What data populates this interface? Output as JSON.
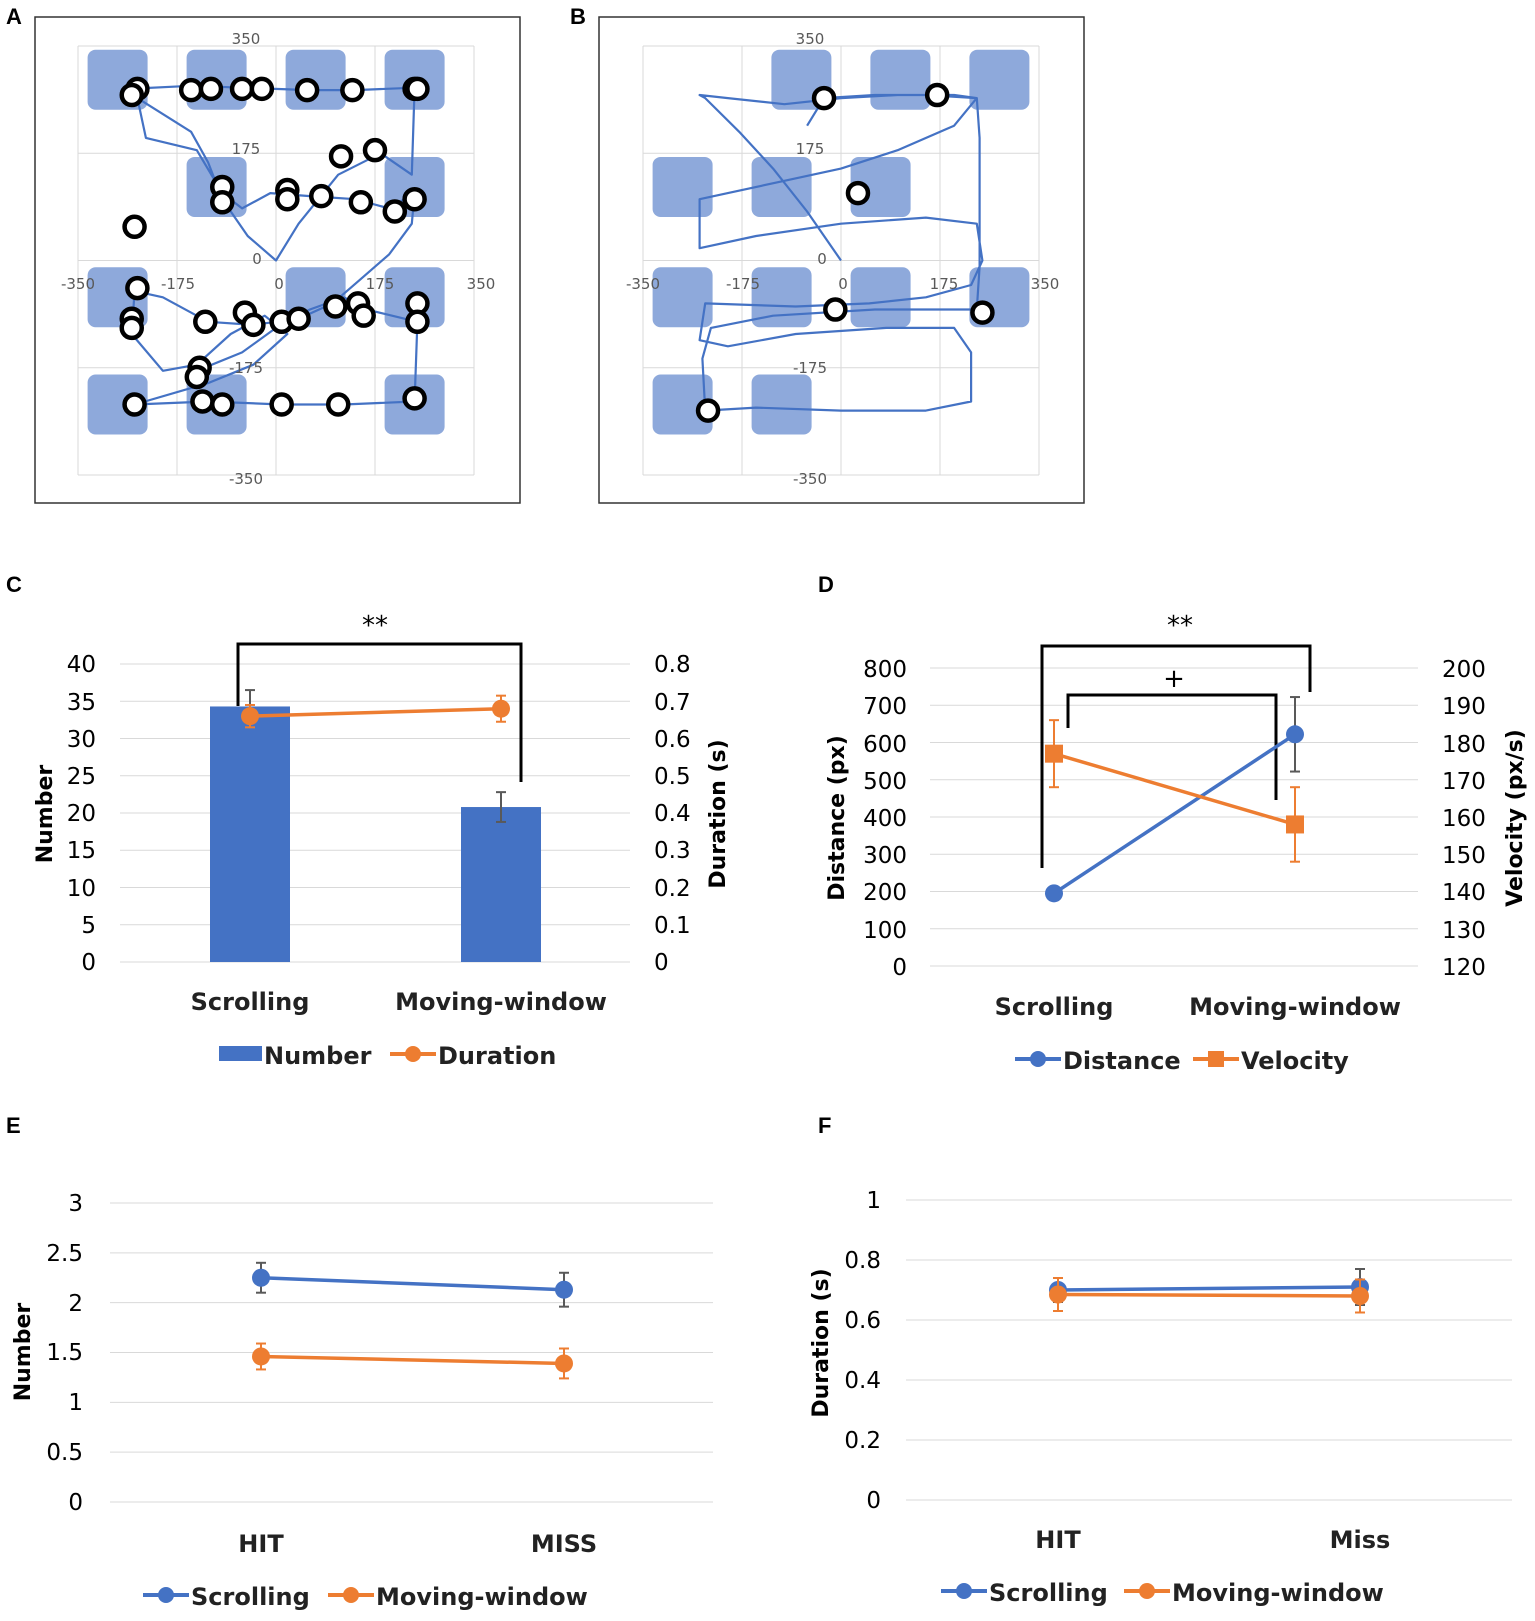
{
  "colors": {
    "blue": "#4472C4",
    "orange": "#ED7D31",
    "target": "#8EA9DB",
    "track": "#4472C4",
    "grid": "#D9D9D9",
    "errbar": "#595959"
  },
  "panels": {
    "A": {
      "label": "A"
    },
    "B": {
      "label": "B"
    },
    "C": {
      "label": "C"
    },
    "D": {
      "label": "D"
    },
    "E": {
      "label": "E"
    },
    "F": {
      "label": "F"
    }
  },
  "chart_data": [
    {
      "id": "A",
      "type": "scatter",
      "title": "",
      "x_ticks": [
        "-350",
        "-175",
        "0",
        "175",
        "350"
      ],
      "y_ticks": [
        "350",
        "175",
        "0",
        "-175",
        "-350"
      ],
      "xlim": [
        -350,
        350
      ],
      "ylim": [
        -350,
        350
      ],
      "targets": [
        [
          -280,
          295
        ],
        [
          -105,
          295
        ],
        [
          70,
          295
        ],
        [
          245,
          295
        ],
        [
          -105,
          120
        ],
        [
          245,
          120
        ],
        [
          -280,
          -60
        ],
        [
          70,
          -60
        ],
        [
          245,
          -60
        ],
        [
          -280,
          -235
        ],
        [
          -105,
          -235
        ],
        [
          245,
          -235
        ]
      ],
      "fixations": [
        [
          -245,
          280
        ],
        [
          -255,
          270
        ],
        [
          -150,
          278
        ],
        [
          -115,
          280
        ],
        [
          -60,
          280
        ],
        [
          -25,
          280
        ],
        [
          55,
          278
        ],
        [
          135,
          278
        ],
        [
          245,
          280
        ],
        [
          250,
          280
        ],
        [
          115,
          170
        ],
        [
          175,
          180
        ],
        [
          -95,
          120
        ],
        [
          -95,
          95
        ],
        [
          20,
          115
        ],
        [
          20,
          100
        ],
        [
          80,
          105
        ],
        [
          150,
          95
        ],
        [
          210,
          80
        ],
        [
          245,
          100
        ],
        [
          -250,
          55
        ],
        [
          -245,
          -45
        ],
        [
          -255,
          -95
        ],
        [
          -255,
          -110
        ],
        [
          -125,
          -100
        ],
        [
          -55,
          -85
        ],
        [
          -40,
          -105
        ],
        [
          10,
          -100
        ],
        [
          40,
          -95
        ],
        [
          105,
          -75
        ],
        [
          145,
          -70
        ],
        [
          155,
          -90
        ],
        [
          250,
          -70
        ],
        [
          250,
          -100
        ],
        [
          -135,
          -175
        ],
        [
          -140,
          -190
        ],
        [
          -250,
          -235
        ],
        [
          -130,
          -230
        ],
        [
          -95,
          -235
        ],
        [
          10,
          -235
        ],
        [
          110,
          -235
        ],
        [
          245,
          -225
        ]
      ],
      "path": [
        [
          -260,
          280
        ],
        [
          -150,
          285
        ],
        [
          -60,
          282
        ],
        [
          60,
          278
        ],
        [
          140,
          278
        ],
        [
          245,
          282
        ],
        [
          240,
          140
        ],
        [
          185,
          175
        ],
        [
          110,
          140
        ],
        [
          40,
          60
        ],
        [
          0,
          0
        ],
        [
          -50,
          40
        ],
        [
          -95,
          100
        ],
        [
          -120,
          160
        ],
        [
          -150,
          210
        ],
        [
          -245,
          265
        ],
        [
          -230,
          200
        ],
        [
          -140,
          180
        ],
        [
          -95,
          110
        ],
        [
          -60,
          85
        ],
        [
          -10,
          110
        ],
        [
          60,
          105
        ],
        [
          140,
          100
        ],
        [
          200,
          85
        ],
        [
          245,
          110
        ],
        [
          240,
          60
        ],
        [
          200,
          10
        ],
        [
          150,
          -30
        ],
        [
          100,
          -70
        ],
        [
          40,
          -95
        ],
        [
          -40,
          -105
        ],
        [
          -120,
          -100
        ],
        [
          -200,
          -60
        ],
        [
          -250,
          -50
        ],
        [
          -255,
          -120
        ],
        [
          -200,
          -180
        ],
        [
          -140,
          -170
        ],
        [
          -80,
          -120
        ],
        [
          -20,
          -90
        ],
        [
          20,
          -120
        ],
        [
          -40,
          -170
        ],
        [
          -120,
          -200
        ],
        [
          -250,
          -235
        ],
        [
          -120,
          -230
        ],
        [
          10,
          -235
        ],
        [
          120,
          -235
        ],
        [
          245,
          -230
        ],
        [
          250,
          -100
        ],
        [
          160,
          -80
        ],
        [
          120,
          -60
        ],
        [
          60,
          -80
        ],
        [
          0,
          -110
        ],
        [
          -60,
          -150
        ],
        [
          -140,
          -180
        ]
      ]
    },
    {
      "id": "B",
      "type": "scatter",
      "title": "",
      "x_ticks": [
        "-350",
        "-175",
        "0",
        "175",
        "350"
      ],
      "y_ticks": [
        "350",
        "175",
        "0",
        "-175",
        "-350"
      ],
      "xlim": [
        -350,
        350
      ],
      "ylim": [
        -350,
        350
      ],
      "targets": [
        [
          -70,
          295
        ],
        [
          105,
          295
        ],
        [
          280,
          295
        ],
        [
          -280,
          120
        ],
        [
          -105,
          120
        ],
        [
          70,
          120
        ],
        [
          -280,
          -60
        ],
        [
          -105,
          -60
        ],
        [
          70,
          -60
        ],
        [
          280,
          -60
        ],
        [
          -280,
          -235
        ],
        [
          -105,
          -235
        ]
      ],
      "fixations": [
        [
          -30,
          265
        ],
        [
          170,
          270
        ],
        [
          30,
          110
        ],
        [
          -10,
          -80
        ],
        [
          250,
          -85
        ],
        [
          -235,
          -245
        ]
      ],
      "path": [
        [
          0,
          0
        ],
        [
          -60,
          80
        ],
        [
          -120,
          150
        ],
        [
          -180,
          210
        ],
        [
          -240,
          265
        ],
        [
          -250,
          270
        ],
        [
          -200,
          265
        ],
        [
          -100,
          255
        ],
        [
          0,
          265
        ],
        [
          100,
          270
        ],
        [
          200,
          270
        ],
        [
          240,
          265
        ],
        [
          200,
          220
        ],
        [
          100,
          180
        ],
        [
          0,
          150
        ],
        [
          -100,
          130
        ],
        [
          -200,
          110
        ],
        [
          -250,
          100
        ],
        [
          -250,
          20
        ],
        [
          -150,
          40
        ],
        [
          0,
          60
        ],
        [
          150,
          70
        ],
        [
          240,
          60
        ],
        [
          250,
          0
        ],
        [
          230,
          -40
        ],
        [
          150,
          -60
        ],
        [
          50,
          -70
        ],
        [
          -80,
          -75
        ],
        [
          -240,
          -70
        ],
        [
          -250,
          -130
        ],
        [
          -200,
          -140
        ],
        [
          -80,
          -120
        ],
        [
          80,
          -110
        ],
        [
          200,
          -110
        ],
        [
          230,
          -150
        ],
        [
          230,
          -230
        ],
        [
          150,
          -245
        ],
        [
          0,
          -245
        ],
        [
          -150,
          -240
        ],
        [
          -240,
          -245
        ],
        [
          -245,
          -160
        ],
        [
          -230,
          -110
        ],
        [
          -120,
          -90
        ],
        [
          60,
          -80
        ],
        [
          240,
          -80
        ],
        [
          245,
          -10
        ],
        [
          245,
          100
        ],
        [
          245,
          200
        ],
        [
          240,
          265
        ],
        [
          150,
          270
        ],
        [
          60,
          270
        ],
        [
          -30,
          265
        ],
        [
          -60,
          220
        ]
      ]
    },
    {
      "id": "C",
      "type": "bar",
      "categories": [
        "Scrolling",
        "Moving-window"
      ],
      "series": [
        {
          "name": "Number",
          "axis": "left",
          "values": [
            34.3,
            20.8
          ],
          "errors": [
            2.2,
            2.0
          ]
        },
        {
          "name": "Duration",
          "axis": "right",
          "values": [
            0.66,
            0.68
          ],
          "errors": [
            0.03,
            0.035
          ]
        }
      ],
      "left_ticks": [
        "0",
        "5",
        "10",
        "15",
        "20",
        "25",
        "30",
        "35",
        "40"
      ],
      "right_ticks": [
        "0",
        "0.1",
        "0.2",
        "0.3",
        "0.4",
        "0.5",
        "0.6",
        "0.7",
        "0.8"
      ],
      "ylim_left": [
        0,
        40
      ],
      "ylim_right": [
        0,
        0.8
      ],
      "ylabel_left": "Number",
      "ylabel_right": "Duration (s)",
      "significance": [
        {
          "label": "**"
        }
      ]
    },
    {
      "id": "D",
      "type": "line",
      "categories": [
        "Scrolling",
        "Moving-window"
      ],
      "series": [
        {
          "name": "Distance",
          "axis": "left",
          "values": [
            195,
            622
          ],
          "errors": [
            0,
            100
          ]
        },
        {
          "name": "Velocity",
          "axis": "right",
          "values": [
            177,
            158
          ],
          "errors": [
            9,
            10
          ]
        }
      ],
      "left_ticks": [
        "0",
        "100",
        "200",
        "300",
        "400",
        "500",
        "600",
        "700",
        "800"
      ],
      "right_ticks": [
        "120",
        "130",
        "140",
        "150",
        "160",
        "170",
        "180",
        "190",
        "200"
      ],
      "ylim_left": [
        0,
        800
      ],
      "ylim_right": [
        120,
        200
      ],
      "ylabel_left": "Distance (px)",
      "ylabel_right": "Velocity (px/s)",
      "significance": [
        {
          "label": "**"
        },
        {
          "label": "+"
        }
      ]
    },
    {
      "id": "E",
      "type": "line",
      "categories": [
        "HIT",
        "MISS"
      ],
      "series": [
        {
          "name": "Scrolling",
          "values": [
            2.25,
            2.13
          ],
          "errors": [
            0.15,
            0.17
          ]
        },
        {
          "name": "Moving-window",
          "values": [
            1.46,
            1.39
          ],
          "errors": [
            0.13,
            0.15
          ]
        }
      ],
      "left_ticks": [
        "0",
        "0.5",
        "1",
        "1.5",
        "2",
        "2.5",
        "3"
      ],
      "ylim_left": [
        0,
        3
      ],
      "ylabel_left": "Number"
    },
    {
      "id": "F",
      "type": "line",
      "categories": [
        "HIT",
        "Miss"
      ],
      "series": [
        {
          "name": "Scrolling",
          "values": [
            0.7,
            0.71
          ],
          "errors": [
            0.04,
            0.06
          ]
        },
        {
          "name": "Moving-window",
          "values": [
            0.685,
            0.68
          ],
          "errors": [
            0.055,
            0.055
          ]
        }
      ],
      "left_ticks": [
        "0",
        "0.2",
        "0.4",
        "0.6",
        "0.8",
        "1"
      ],
      "ylim_left": [
        0,
        1
      ],
      "ylabel_left": "Duration (s)"
    }
  ]
}
